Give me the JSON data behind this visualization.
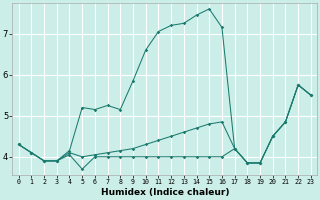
{
  "xlabel": "Humidex (Indice chaleur)",
  "background_color": "#cceee8",
  "grid_color": "#ffffff",
  "line_color": "#1a7a6e",
  "xlim": [
    -0.5,
    23.5
  ],
  "ylim": [
    3.55,
    7.75
  ],
  "xticks": [
    0,
    1,
    2,
    3,
    4,
    5,
    6,
    7,
    8,
    9,
    10,
    11,
    12,
    13,
    14,
    15,
    16,
    17,
    18,
    19,
    20,
    21,
    22,
    23
  ],
  "yticks": [
    4,
    5,
    6,
    7
  ],
  "series": [
    {
      "x": [
        0,
        1,
        2,
        3,
        4,
        5,
        6,
        7,
        8,
        9,
        10,
        11,
        12,
        13,
        14,
        15,
        16,
        17,
        18,
        19,
        20,
        21,
        22,
        23
      ],
      "y": [
        4.3,
        4.1,
        3.9,
        3.9,
        4.15,
        5.2,
        5.15,
        5.25,
        5.15,
        5.85,
        6.6,
        7.05,
        7.2,
        7.25,
        7.45,
        7.6,
        7.15,
        4.2,
        3.85,
        3.85,
        4.5,
        4.85,
        5.75,
        5.5
      ]
    },
    {
      "x": [
        0,
        1,
        2,
        3,
        4,
        5,
        6,
        7,
        8,
        9,
        10,
        11,
        12,
        13,
        14,
        15,
        16,
        17,
        18,
        19,
        20,
        21,
        22,
        23
      ],
      "y": [
        4.3,
        4.1,
        3.9,
        3.9,
        4.1,
        4.0,
        4.05,
        4.1,
        4.15,
        4.2,
        4.3,
        4.4,
        4.5,
        4.6,
        4.7,
        4.8,
        4.85,
        4.2,
        3.85,
        3.85,
        4.5,
        4.85,
        5.75,
        5.5
      ]
    },
    {
      "x": [
        0,
        1,
        2,
        3,
        4,
        5,
        6,
        7,
        8,
        9,
        10,
        11,
        12,
        13,
        14,
        15,
        16,
        17,
        18,
        19,
        20,
        21,
        22,
        23
      ],
      "y": [
        4.3,
        4.1,
        3.9,
        3.9,
        4.05,
        3.7,
        4.0,
        4.0,
        4.0,
        4.0,
        4.0,
        4.0,
        4.0,
        4.0,
        4.0,
        4.0,
        4.0,
        4.2,
        3.85,
        3.85,
        4.5,
        4.85,
        5.75,
        5.5
      ]
    }
  ]
}
